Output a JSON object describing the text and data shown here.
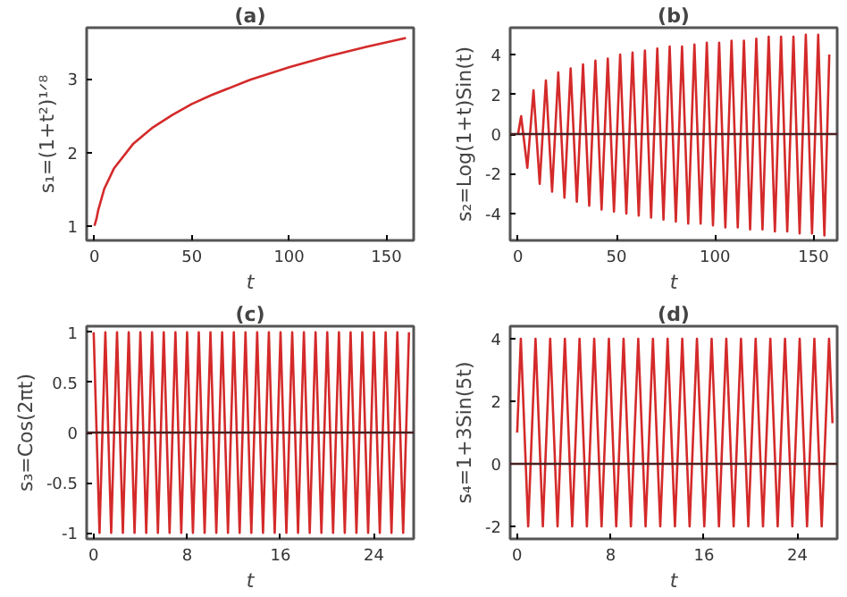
{
  "chart_data": [
    {
      "type": "line",
      "title": "(a)",
      "xlabel": "t",
      "ylabel": "s₁=(1+t²)¹ᐟ⁸",
      "grid": false,
      "xlim": [
        -4,
        164
      ],
      "xticks": [
        0,
        50,
        100,
        150
      ],
      "ylim": [
        0.8,
        3.7
      ],
      "yticks": [
        1,
        2,
        3
      ],
      "series": [
        {
          "color": "#d42a2a",
          "x": [
            0,
            1,
            2,
            5,
            10,
            20,
            30,
            40,
            50,
            60,
            80,
            100,
            120,
            140,
            160
          ],
          "values": [
            1,
            1.09,
            1.22,
            1.5,
            1.78,
            2.12,
            2.34,
            2.51,
            2.66,
            2.78,
            2.99,
            3.16,
            3.31,
            3.44,
            3.56
          ]
        }
      ]
    },
    {
      "type": "line",
      "title": "(b)",
      "xlabel": "t",
      "ylabel": "s₂=Log(1+t)Sin(t)",
      "grid": false,
      "xlim": [
        -4,
        162
      ],
      "xticks": [
        0,
        50,
        100,
        150
      ],
      "ylim": [
        -5.35,
        5.35
      ],
      "yticks": [
        -4,
        -2,
        0,
        2,
        4
      ],
      "ref_lines": [
        {
          "axis": "y",
          "value": 0,
          "label": null,
          "color": "#4a2020"
        }
      ],
      "series": [
        {
          "color": "#d42a2a",
          "x": [
            0,
            1.57,
            4.71,
            7.85,
            11.0,
            14.14,
            17.28,
            20.42,
            23.56,
            26.7,
            29.85,
            32.99,
            36.13,
            39.27,
            42.41,
            45.55,
            48.69,
            51.84,
            54.98,
            58.12,
            61.26,
            64.4,
            67.54,
            70.69,
            73.83,
            76.97,
            80.11,
            83.25,
            86.39,
            89.54,
            92.68,
            95.82,
            98.96,
            102.1,
            105.24,
            108.38,
            111.53,
            114.67,
            117.81,
            120.95,
            124.09,
            127.23,
            130.38,
            133.52,
            136.66,
            139.8,
            142.94,
            146.08,
            149.23,
            152.37,
            155.51,
            158
          ],
          "values": [
            0,
            0.9,
            -1.7,
            2.2,
            -2.5,
            2.7,
            -2.9,
            3.1,
            -3.2,
            3.3,
            -3.4,
            3.5,
            -3.6,
            3.7,
            -3.8,
            3.8,
            -3.9,
            4.0,
            -4.0,
            4.1,
            -4.1,
            4.2,
            -4.2,
            4.3,
            -4.3,
            4.4,
            -4.4,
            4.4,
            -4.5,
            4.5,
            -4.5,
            4.6,
            -4.6,
            4.6,
            -4.7,
            4.7,
            -4.7,
            4.7,
            -4.8,
            4.8,
            -4.8,
            4.9,
            -4.9,
            4.9,
            -4.9,
            4.9,
            -5.0,
            5.0,
            -5.0,
            5.0,
            -5.1,
            4.0
          ]
        }
      ]
    },
    {
      "type": "line",
      "title": "(c)",
      "xlabel": "t",
      "ylabel": "s₃=Cos(2πt)",
      "grid": false,
      "xlim": [
        -0.6,
        27.4
      ],
      "xticks": [
        0,
        8,
        16,
        24
      ],
      "ylim": [
        -1.06,
        1.06
      ],
      "yticks": [
        -1,
        -0.5,
        0,
        0.5,
        1
      ],
      "ref_lines": [
        {
          "axis": "y",
          "value": 0,
          "label": null,
          "color": "#4a2020"
        }
      ],
      "series": [
        {
          "color": "#d42a2a",
          "x": [
            0,
            0.5,
            1,
            1.5,
            2,
            2.5,
            3,
            3.5,
            4,
            4.5,
            5,
            5.5,
            6,
            6.5,
            7,
            7.5,
            8,
            8.5,
            9,
            9.5,
            10,
            10.5,
            11,
            11.5,
            12,
            12.5,
            13,
            13.5,
            14,
            14.5,
            15,
            15.5,
            16,
            16.5,
            17,
            17.5,
            18,
            18.5,
            19,
            19.5,
            20,
            20.5,
            21,
            21.5,
            22,
            22.5,
            23,
            23.5,
            24,
            24.5,
            25,
            25.5,
            26,
            26.5,
            27
          ],
          "values": [
            1,
            -1,
            1,
            -1,
            1,
            -1,
            1,
            -1,
            1,
            -1,
            1,
            -1,
            1,
            -1,
            1,
            -1,
            1,
            -1,
            1,
            -1,
            1,
            -1,
            1,
            -1,
            1,
            -1,
            1,
            -1,
            1,
            -1,
            1,
            -1,
            1,
            -1,
            1,
            -1,
            1,
            -1,
            1,
            -1,
            1,
            -1,
            1,
            -1,
            1,
            -1,
            1,
            -1,
            1,
            -1,
            1,
            -1,
            1,
            -1,
            1
          ]
        }
      ]
    },
    {
      "type": "line",
      "title": "(d)",
      "xlabel": "t",
      "ylabel": "s₄=1+3Sin(5t)",
      "grid": false,
      "xlim": [
        -0.6,
        27.4
      ],
      "xticks": [
        0,
        8,
        16,
        24
      ],
      "ylim": [
        -2.4,
        4.4
      ],
      "yticks": [
        -2,
        0,
        2,
        4
      ],
      "ref_lines": [
        {
          "axis": "y",
          "value": 0,
          "label": null,
          "color": "#4a2020"
        }
      ],
      "series": [
        {
          "color": "#d42a2a",
          "x": [
            0,
            0.314,
            0.942,
            1.571,
            2.199,
            2.827,
            3.456,
            4.084,
            4.712,
            5.341,
            5.969,
            6.597,
            7.226,
            7.854,
            8.482,
            9.111,
            9.739,
            10.367,
            10.996,
            11.624,
            12.252,
            12.881,
            13.509,
            14.137,
            14.765,
            15.394,
            16.022,
            16.65,
            17.279,
            17.907,
            18.535,
            19.164,
            19.792,
            20.42,
            21.049,
            21.677,
            22.305,
            22.934,
            23.562,
            24.19,
            24.819,
            25.447,
            26.075,
            26.704,
            27
          ],
          "values": [
            1,
            4,
            -2,
            4,
            -2,
            4,
            -2,
            4,
            -2,
            4,
            -2,
            4,
            -2,
            4,
            -2,
            4,
            -2,
            4,
            -2,
            4,
            -2,
            4,
            -2,
            4,
            -2,
            4,
            -2,
            4,
            -2,
            4,
            -2,
            4,
            -2,
            4,
            -2,
            4,
            -2,
            4,
            -2,
            4,
            -2,
            4,
            -2,
            4,
            1.3
          ]
        }
      ]
    }
  ]
}
